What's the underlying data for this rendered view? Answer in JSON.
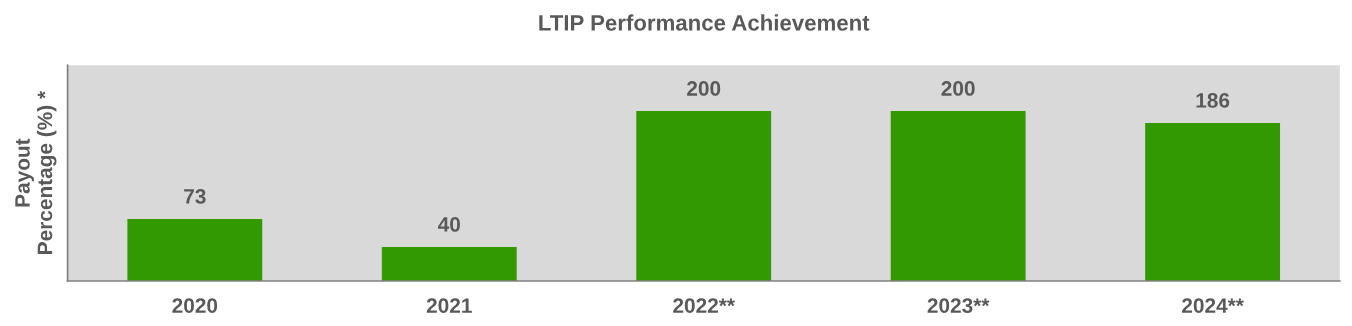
{
  "chart_data": {
    "type": "bar",
    "title": "LTIP Performance Achievement",
    "ylabel": "Payout\nPercentage (%) *",
    "categories": [
      "2020",
      "2021",
      "2022**",
      "2023**",
      "2024**"
    ],
    "values": [
      73,
      40,
      200,
      200,
      186
    ],
    "color": "#339900",
    "data_labels": true,
    "grid": false,
    "legend": false,
    "tick_labels": "x"
  }
}
